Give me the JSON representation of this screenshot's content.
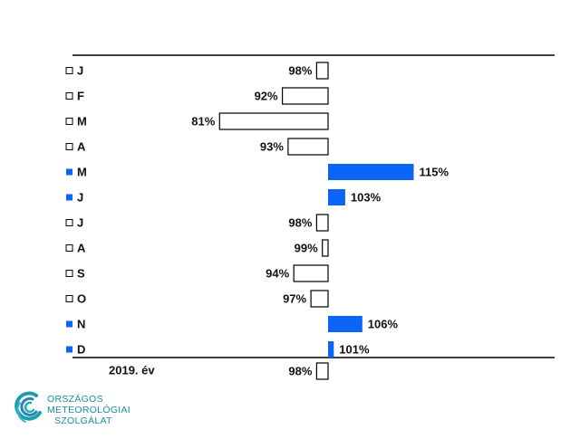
{
  "chart_data": {
    "type": "diverging-bar",
    "categories": [
      "J",
      "F",
      "M",
      "A",
      "M",
      "J",
      "J",
      "A",
      "S",
      "O",
      "N",
      "D"
    ],
    "values": [
      98,
      92,
      81,
      93,
      115,
      103,
      98,
      99,
      94,
      97,
      106,
      101
    ],
    "value_labels": [
      "98%",
      "92%",
      "81%",
      "93%",
      "115%",
      "103%",
      "98%",
      "99%",
      "94%",
      "97%",
      "106%",
      "101%"
    ],
    "baseline": 100,
    "xlim": [
      60,
      140
    ],
    "above_color": "#0a64f5",
    "below_color": "#ffffff",
    "total": {
      "label": "2019. év",
      "value": 98,
      "value_label": "98%"
    }
  },
  "logo": [
    "ORSZÁGOS",
    "METEOROLÓGIAI",
    "SZOLGÁLAT"
  ]
}
